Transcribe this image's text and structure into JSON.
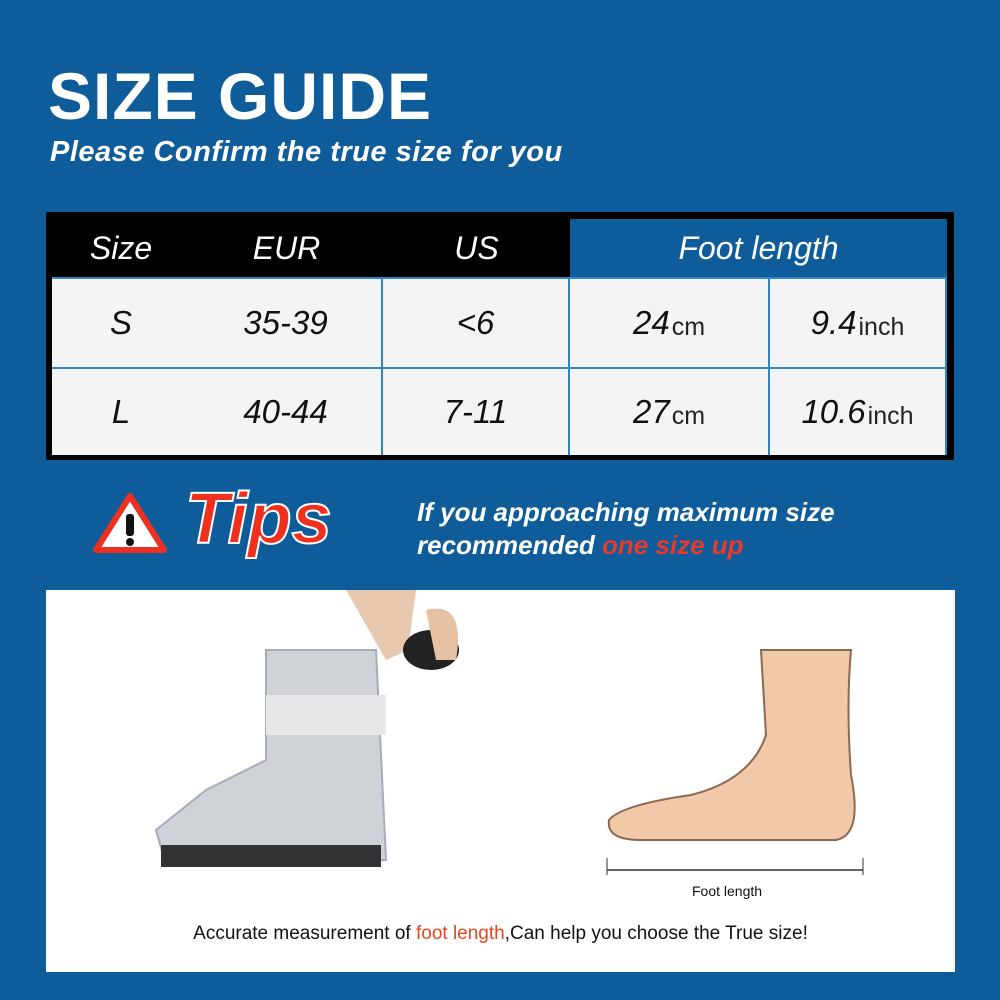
{
  "title": "SIZE GUIDE",
  "subtitle": "Please Confirm the true size for you",
  "table": {
    "headers": [
      "Size",
      "EUR",
      "US",
      "Foot length"
    ],
    "rows": [
      {
        "size": "S",
        "eur": "35-39",
        "us": "<6",
        "cm": "24",
        "cm_unit": "cm",
        "inch": "9.4",
        "inch_unit": "inch"
      },
      {
        "size": "L",
        "eur": "40-44",
        "us": "7-11",
        "cm": "27",
        "cm_unit": "cm",
        "inch": "10.6",
        "inch_unit": "inch"
      }
    ]
  },
  "tips": {
    "label": "Tips",
    "icon": "warning-triangle-icon",
    "line1": "If you approaching maximum size",
    "line2_prefix": "recommended ",
    "line2_highlight": "one size up"
  },
  "illustration": {
    "foot_label": "Foot length",
    "caption_prefix": "Accurate measurement of ",
    "caption_highlight": "foot length",
    "caption_suffix": ",Can help you choose the True size!"
  },
  "colors": {
    "background": "#0f5c9b",
    "accent_red": "#f0301e",
    "header_black": "#000000"
  }
}
